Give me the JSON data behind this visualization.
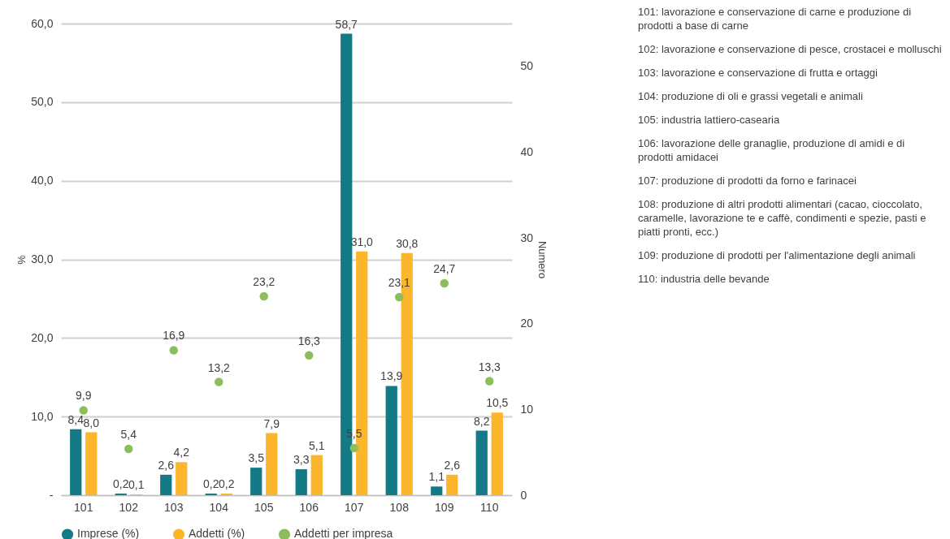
{
  "chart_data": {
    "type": "bar",
    "xlabel": null,
    "ylabel": "%",
    "y2label": "Numero",
    "categories": [
      "101",
      "102",
      "103",
      "104",
      "105",
      "106",
      "107",
      "108",
      "109",
      "110"
    ],
    "series": [
      {
        "name": "Imprese (%)",
        "color": "#147a86",
        "values": [
          8.4,
          0.2,
          2.6,
          0.2,
          3.5,
          3.3,
          58.7,
          13.9,
          1.1,
          8.2
        ],
        "value_labels": [
          "8,4",
          "0,2",
          "2,6",
          "0,2",
          "3,5",
          "3,3",
          "58,7",
          "13,9",
          "1,1",
          "8,2"
        ]
      },
      {
        "name": "Addetti (%)",
        "color": "#fbb62b",
        "values": [
          8.0,
          0.1,
          4.2,
          0.2,
          7.9,
          5.1,
          31.0,
          30.8,
          2.6,
          10.5
        ],
        "value_labels": [
          "8,0",
          "0,1",
          "4,2",
          "0,2",
          "7,9",
          "5,1",
          "31,0",
          "30,8",
          "2,6",
          "10,5"
        ]
      },
      {
        "name": "Addetti per impresa",
        "type": "scatter",
        "axis": "y2",
        "color": "#8dbe5c",
        "values": [
          9.9,
          5.4,
          16.9,
          13.2,
          23.2,
          16.3,
          5.5,
          23.1,
          24.7,
          13.3
        ],
        "value_labels": [
          "9,9",
          "5,4",
          "16,9",
          "13,2",
          "23,2",
          "16,3",
          "5,5",
          "23,1",
          "24,7",
          "13,3"
        ]
      }
    ],
    "ylim": [
      0,
      60
    ],
    "yticks": [
      {
        "value": 0,
        "label": "-"
      },
      {
        "value": 10,
        "label": "10,0"
      },
      {
        "value": 20,
        "label": "20,0"
      },
      {
        "value": 30,
        "label": "30,0"
      },
      {
        "value": 40,
        "label": "40,0"
      },
      {
        "value": 50,
        "label": "50,0"
      },
      {
        "value": 60,
        "label": "60,0"
      }
    ],
    "y2lim": [
      0,
      55
    ],
    "y2ticks": [
      0,
      10,
      20,
      30,
      40,
      50
    ],
    "grid": "y",
    "legend": "bottom",
    "marker": "circle",
    "annotations": [
      "101: lavorazione e conservazione di carne e produzione di prodotti a base di carne",
      "102: lavorazione e conservazione di pesce, crostacei e molluschi",
      "103: lavorazione e conservazione di frutta e ortaggi",
      "104: produzione di oli e grassi vegetali e animali",
      "105: industria lattiero-casearia",
      "106: lavorazione delle granaglie, produzione di amidi e di prodotti amidacei",
      "107: produzione di prodotti da forno e farinacei",
      "108: produzione di altri prodotti alimentari (cacao, cioccolato, caramelle, lavorazione te e caffè, condimenti e spezie, pasti e piatti pronti, ecc.)",
      "109: produzione di prodotti per l'alimentazione degli animali",
      "110: industria delle bevande"
    ]
  }
}
